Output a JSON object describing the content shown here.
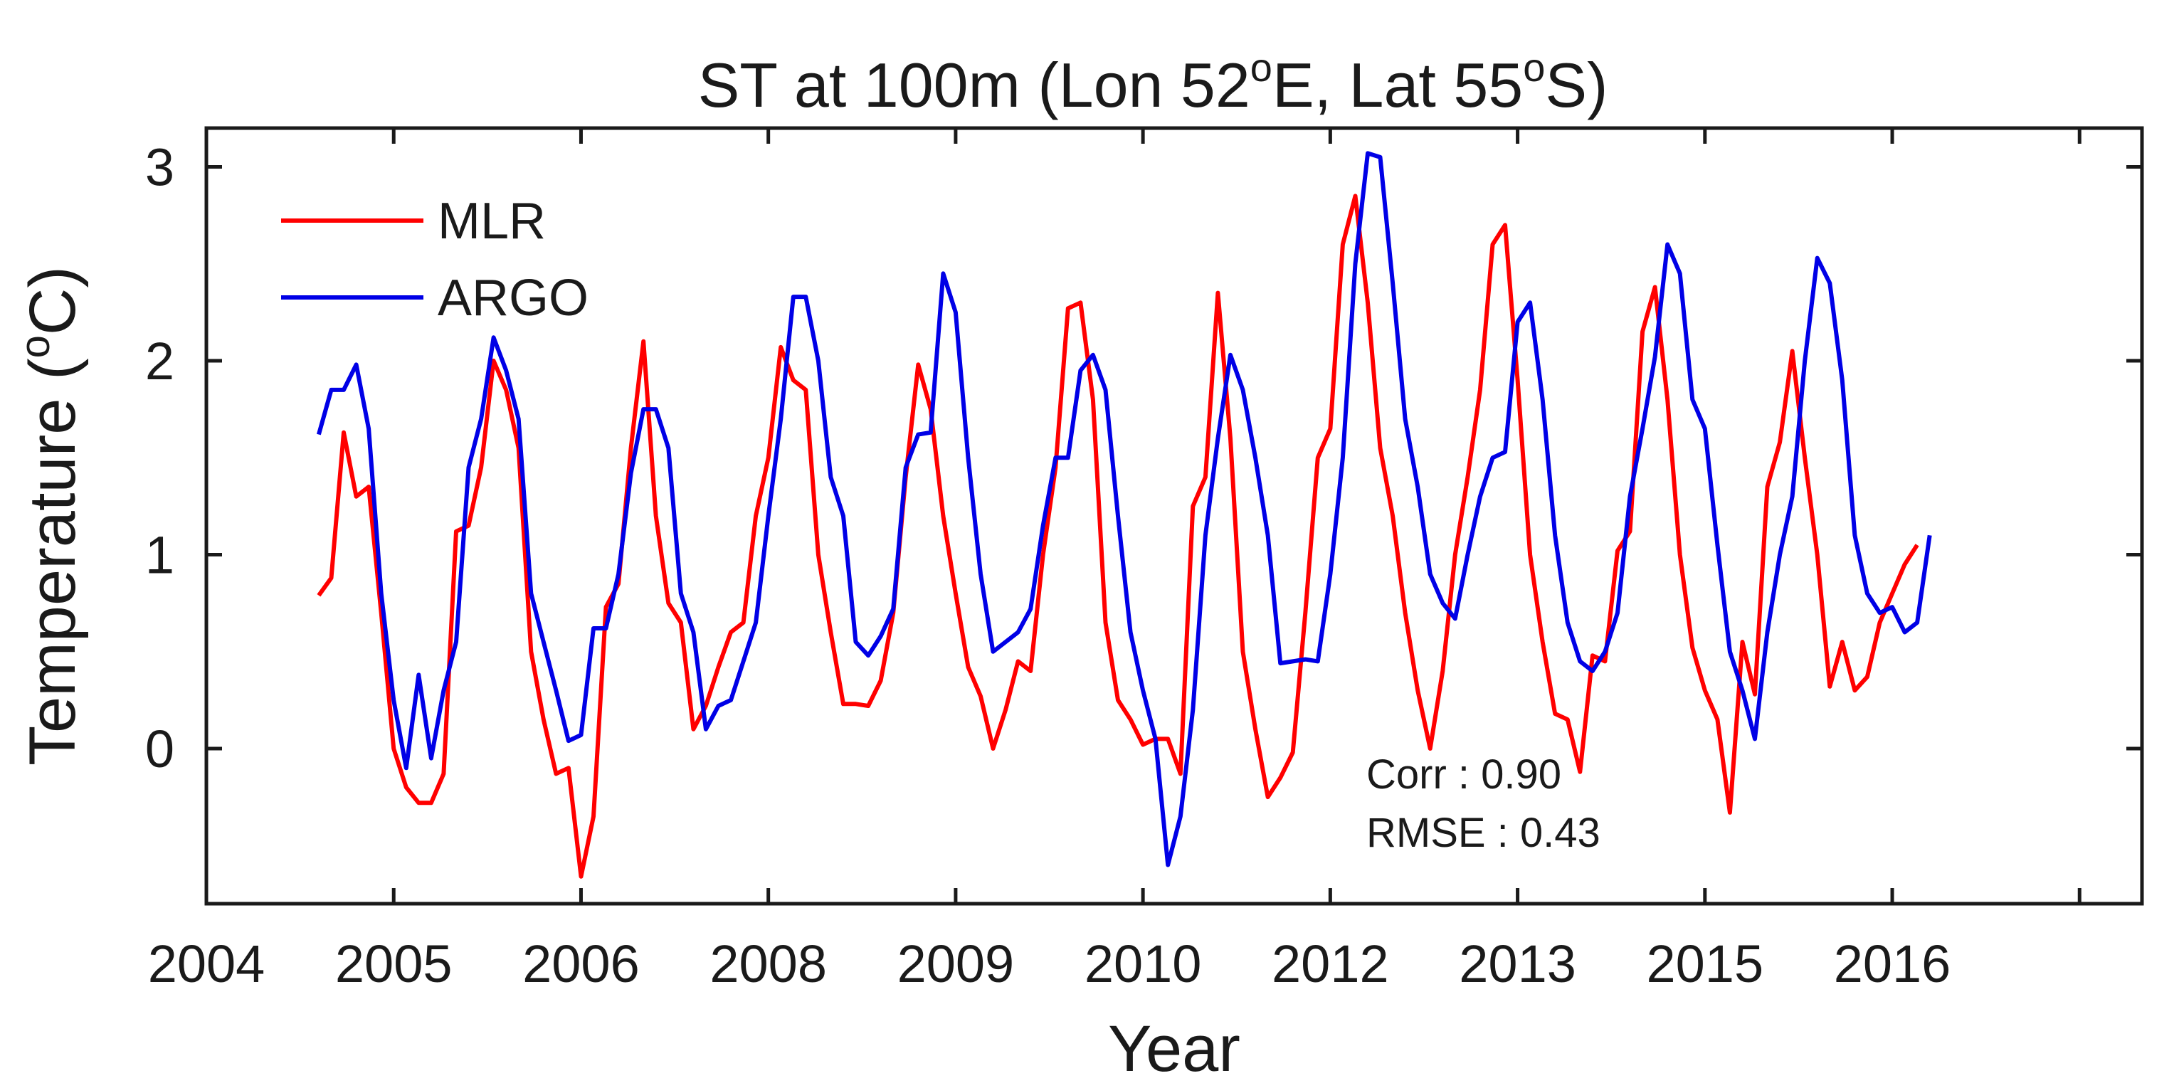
{
  "chart_data": {
    "type": "line",
    "title_prefix": "ST at 100m (Lon 52",
    "title_sup1": "o",
    "title_mid": "E, Lat 55",
    "title_sup2": "o",
    "title_suffix": "S)",
    "xlabel": "Year",
    "ylabel_prefix": "Temperature (",
    "ylabel_sup": "o",
    "ylabel_suffix": "C)",
    "x_tick_labels": [
      "2004",
      "2005",
      "2006",
      "2008",
      "2009",
      "2010",
      "2012",
      "2013",
      "2015",
      "2016"
    ],
    "xlim": [
      0,
      155
    ],
    "x_ticks": [
      0,
      15,
      30,
      45,
      60,
      75,
      90,
      105,
      120,
      135,
      150
    ],
    "ylim": [
      -0.8,
      3.2
    ],
    "y_ticks": [
      0,
      1,
      2,
      3
    ],
    "y_tick_labels": [
      "0",
      "1",
      "2",
      "3"
    ],
    "annotations": [
      "Corr : 0.90",
      "RMSE : 0.43"
    ],
    "legend_position": "top-left",
    "colors": {
      "MLR": "#ff0000",
      "ARGO": "#0000e6",
      "axes": "#1a1a1a"
    },
    "series": [
      {
        "name": "MLR",
        "x_start": 9,
        "values": [
          0.79,
          0.88,
          1.63,
          1.3,
          1.35,
          0.7,
          0.0,
          -0.2,
          -0.28,
          -0.28,
          -0.13,
          1.12,
          1.15,
          1.45,
          2.0,
          1.85,
          1.55,
          0.5,
          0.15,
          -0.13,
          -0.1,
          -0.66,
          -0.35,
          0.73,
          0.85,
          1.55,
          2.1,
          1.2,
          0.75,
          0.65,
          0.1,
          0.22,
          0.42,
          0.6,
          0.65,
          1.2,
          1.5,
          2.07,
          1.9,
          1.85,
          1.0,
          0.6,
          0.23,
          0.23,
          0.22,
          0.35,
          0.7,
          1.4,
          1.98,
          1.75,
          1.2,
          0.8,
          0.42,
          0.27,
          0.0,
          0.2,
          0.45,
          0.4,
          1.0,
          1.45,
          2.27,
          2.3,
          1.8,
          0.65,
          0.25,
          0.15,
          0.02,
          0.05,
          0.05,
          -0.13,
          1.25,
          1.4,
          2.35,
          1.6,
          0.5,
          0.1,
          -0.25,
          -0.15,
          -0.02,
          0.7,
          1.5,
          1.65,
          2.6,
          2.85,
          2.3,
          1.55,
          1.2,
          0.7,
          0.3,
          0.0,
          0.4,
          1.0,
          1.4,
          1.85,
          2.6,
          2.7,
          1.9,
          1.0,
          0.55,
          0.18,
          0.15,
          -0.12,
          0.48,
          0.45,
          1.02,
          1.12,
          2.15,
          2.38,
          1.8,
          1.0,
          0.52,
          0.3,
          0.15,
          -0.33,
          0.55,
          0.28,
          1.35,
          1.58,
          2.05,
          1.5,
          1.0,
          0.32,
          0.55,
          0.3,
          0.37,
          0.65,
          0.8,
          0.95,
          1.05
        ],
        "marker": "none"
      },
      {
        "name": "ARGO",
        "x_start": 9,
        "values": [
          1.62,
          1.85,
          1.85,
          1.98,
          1.65,
          0.8,
          0.25,
          -0.1,
          0.38,
          -0.05,
          0.3,
          0.55,
          1.45,
          1.7,
          2.12,
          1.95,
          1.7,
          0.8,
          0.55,
          0.3,
          0.04,
          0.07,
          0.62,
          0.62,
          0.9,
          1.42,
          1.75,
          1.75,
          1.55,
          0.8,
          0.6,
          0.1,
          0.22,
          0.25,
          0.45,
          0.65,
          1.2,
          1.7,
          2.33,
          2.33,
          2.0,
          1.4,
          1.2,
          0.55,
          0.48,
          0.58,
          0.72,
          1.45,
          1.62,
          1.63,
          2.45,
          2.25,
          1.5,
          0.9,
          0.5,
          0.55,
          0.6,
          0.72,
          1.15,
          1.5,
          1.5,
          1.95,
          2.03,
          1.85,
          1.2,
          0.6,
          0.3,
          0.05,
          -0.6,
          -0.35,
          0.2,
          1.1,
          1.6,
          2.03,
          1.85,
          1.5,
          1.1,
          0.44,
          0.45,
          0.46,
          0.45,
          0.9,
          1.5,
          2.5,
          3.07,
          3.05,
          2.4,
          1.7,
          1.35,
          0.9,
          0.75,
          0.67,
          1.0,
          1.3,
          1.5,
          1.53,
          2.2,
          2.3,
          1.8,
          1.1,
          0.65,
          0.45,
          0.4,
          0.5,
          0.7,
          1.3,
          1.65,
          2.02,
          2.6,
          2.45,
          1.8,
          1.65,
          1.05,
          0.5,
          0.3,
          0.05,
          0.6,
          1.0,
          1.3,
          2.0,
          2.53,
          2.4,
          1.9,
          1.1,
          0.8,
          0.7,
          0.73,
          0.6,
          0.65,
          1.1
        ]
      }
    ]
  }
}
